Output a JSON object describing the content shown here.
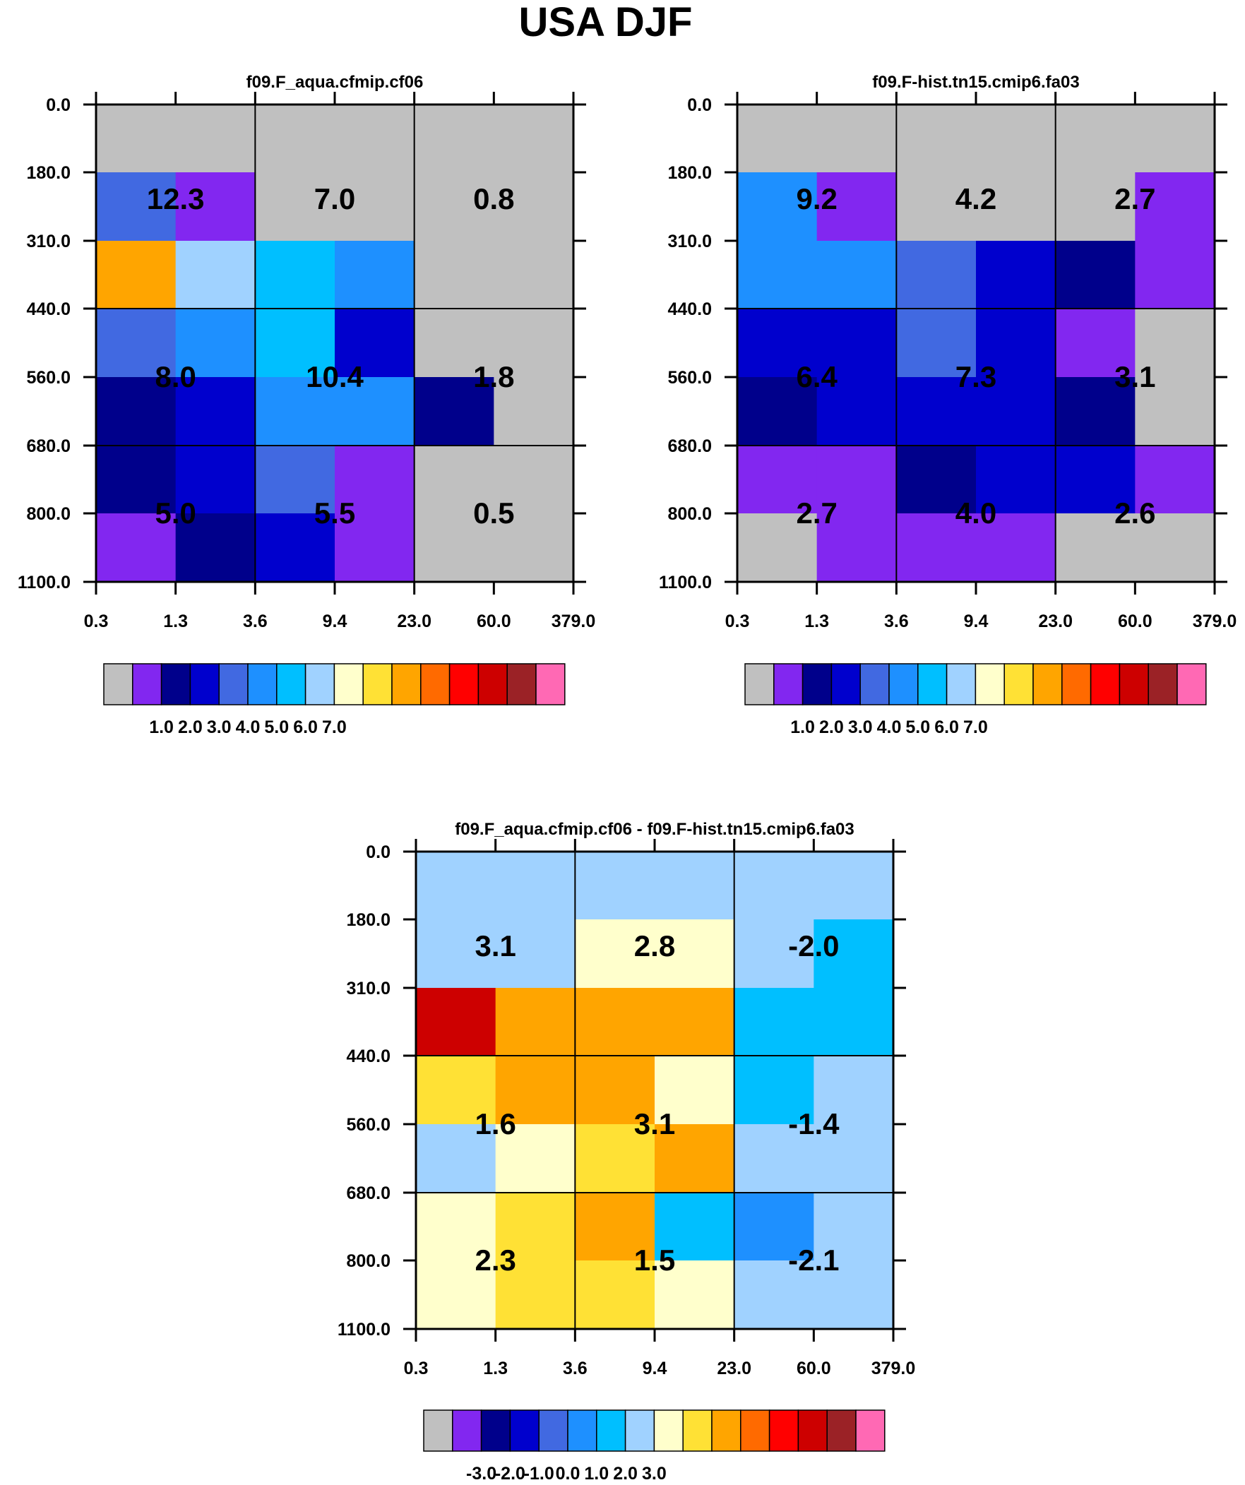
{
  "title": "USA DJF",
  "colors": {
    "palette": [
      "#c0c0c0",
      "#8227f0",
      "#00008b",
      "#0000cd",
      "#4169e1",
      "#1e90ff",
      "#00bfff",
      "#a0d2ff",
      "#ffffcc",
      "#ffe135",
      "#ffa500",
      "#ff6a00",
      "#ff0000",
      "#cd0000",
      "#9b2226",
      "#ff69b4"
    ]
  },
  "chart_data": [
    {
      "type": "heatmap",
      "title": "f09.F_aqua.cfmip.cf06",
      "x_ticks": [
        "0.3",
        "1.3",
        "3.6",
        "9.4",
        "23.0",
        "60.0",
        "379.0"
      ],
      "y_ticks": [
        "0.0",
        "180.0",
        "310.0",
        "440.0",
        "560.0",
        "680.0",
        "800.0",
        "1100.0"
      ],
      "cells": [
        [
          0,
          0,
          0,
          0,
          0,
          0
        ],
        [
          4,
          1,
          0,
          0,
          0,
          0
        ],
        [
          10,
          7,
          6,
          5,
          0,
          0
        ],
        [
          4,
          5,
          6,
          3,
          0,
          0
        ],
        [
          2,
          3,
          5,
          5,
          2,
          0
        ],
        [
          2,
          3,
          4,
          1,
          0,
          0
        ],
        [
          1,
          2,
          3,
          1,
          0,
          0
        ]
      ],
      "block_values": [
        [
          "12.3",
          "7.0",
          "0.8"
        ],
        [
          "8.0",
          "10.4",
          "1.8"
        ],
        [
          "5.0",
          "5.5",
          "0.5"
        ]
      ],
      "colorbar_labels": [
        "1.0",
        "2.0",
        "3.0",
        "4.0",
        "5.0",
        "6.0",
        "7.0"
      ]
    },
    {
      "type": "heatmap",
      "title": "f09.F-hist.tn15.cmip6.fa03",
      "x_ticks": [
        "0.3",
        "1.3",
        "3.6",
        "9.4",
        "23.0",
        "60.0",
        "379.0"
      ],
      "y_ticks": [
        "0.0",
        "180.0",
        "310.0",
        "440.0",
        "560.0",
        "680.0",
        "800.0",
        "1100.0"
      ],
      "cells": [
        [
          0,
          0,
          0,
          0,
          0,
          0
        ],
        [
          5,
          1,
          0,
          0,
          0,
          1
        ],
        [
          5,
          5,
          4,
          3,
          2,
          1
        ],
        [
          3,
          3,
          4,
          3,
          1,
          0
        ],
        [
          2,
          3,
          3,
          3,
          2,
          0
        ],
        [
          1,
          1,
          2,
          3,
          3,
          1
        ],
        [
          0,
          1,
          1,
          1,
          0,
          0
        ]
      ],
      "block_values": [
        [
          "9.2",
          "4.2",
          "2.7"
        ],
        [
          "6.4",
          "7.3",
          "3.1"
        ],
        [
          "2.7",
          "4.0",
          "2.6"
        ]
      ],
      "colorbar_labels": [
        "1.0",
        "2.0",
        "3.0",
        "4.0",
        "5.0",
        "6.0",
        "7.0"
      ]
    },
    {
      "type": "heatmap",
      "title": "f09.F_aqua.cfmip.cf06 - f09.F-hist.tn15.cmip6.fa03",
      "x_ticks": [
        "0.3",
        "1.3",
        "3.6",
        "9.4",
        "23.0",
        "60.0",
        "379.0"
      ],
      "y_ticks": [
        "0.0",
        "180.0",
        "310.0",
        "440.0",
        "560.0",
        "680.0",
        "800.0",
        "1100.0"
      ],
      "cells": [
        [
          7,
          7,
          7,
          7,
          7,
          7
        ],
        [
          7,
          7,
          8,
          8,
          7,
          6
        ],
        [
          13,
          10,
          10,
          10,
          6,
          6
        ],
        [
          9,
          10,
          10,
          8,
          6,
          7
        ],
        [
          7,
          8,
          9,
          10,
          7,
          7
        ],
        [
          8,
          9,
          10,
          6,
          5,
          7
        ],
        [
          8,
          9,
          9,
          8,
          7,
          7
        ]
      ],
      "block_values": [
        [
          "3.1",
          "2.8",
          "-2.0"
        ],
        [
          "1.6",
          "3.1",
          "-1.4"
        ],
        [
          "2.3",
          "1.5",
          "-2.1"
        ]
      ],
      "colorbar_labels": [
        "-3.0",
        "-2.0",
        "-1.0",
        "0.0",
        "1.0",
        "2.0",
        "3.0"
      ]
    }
  ]
}
